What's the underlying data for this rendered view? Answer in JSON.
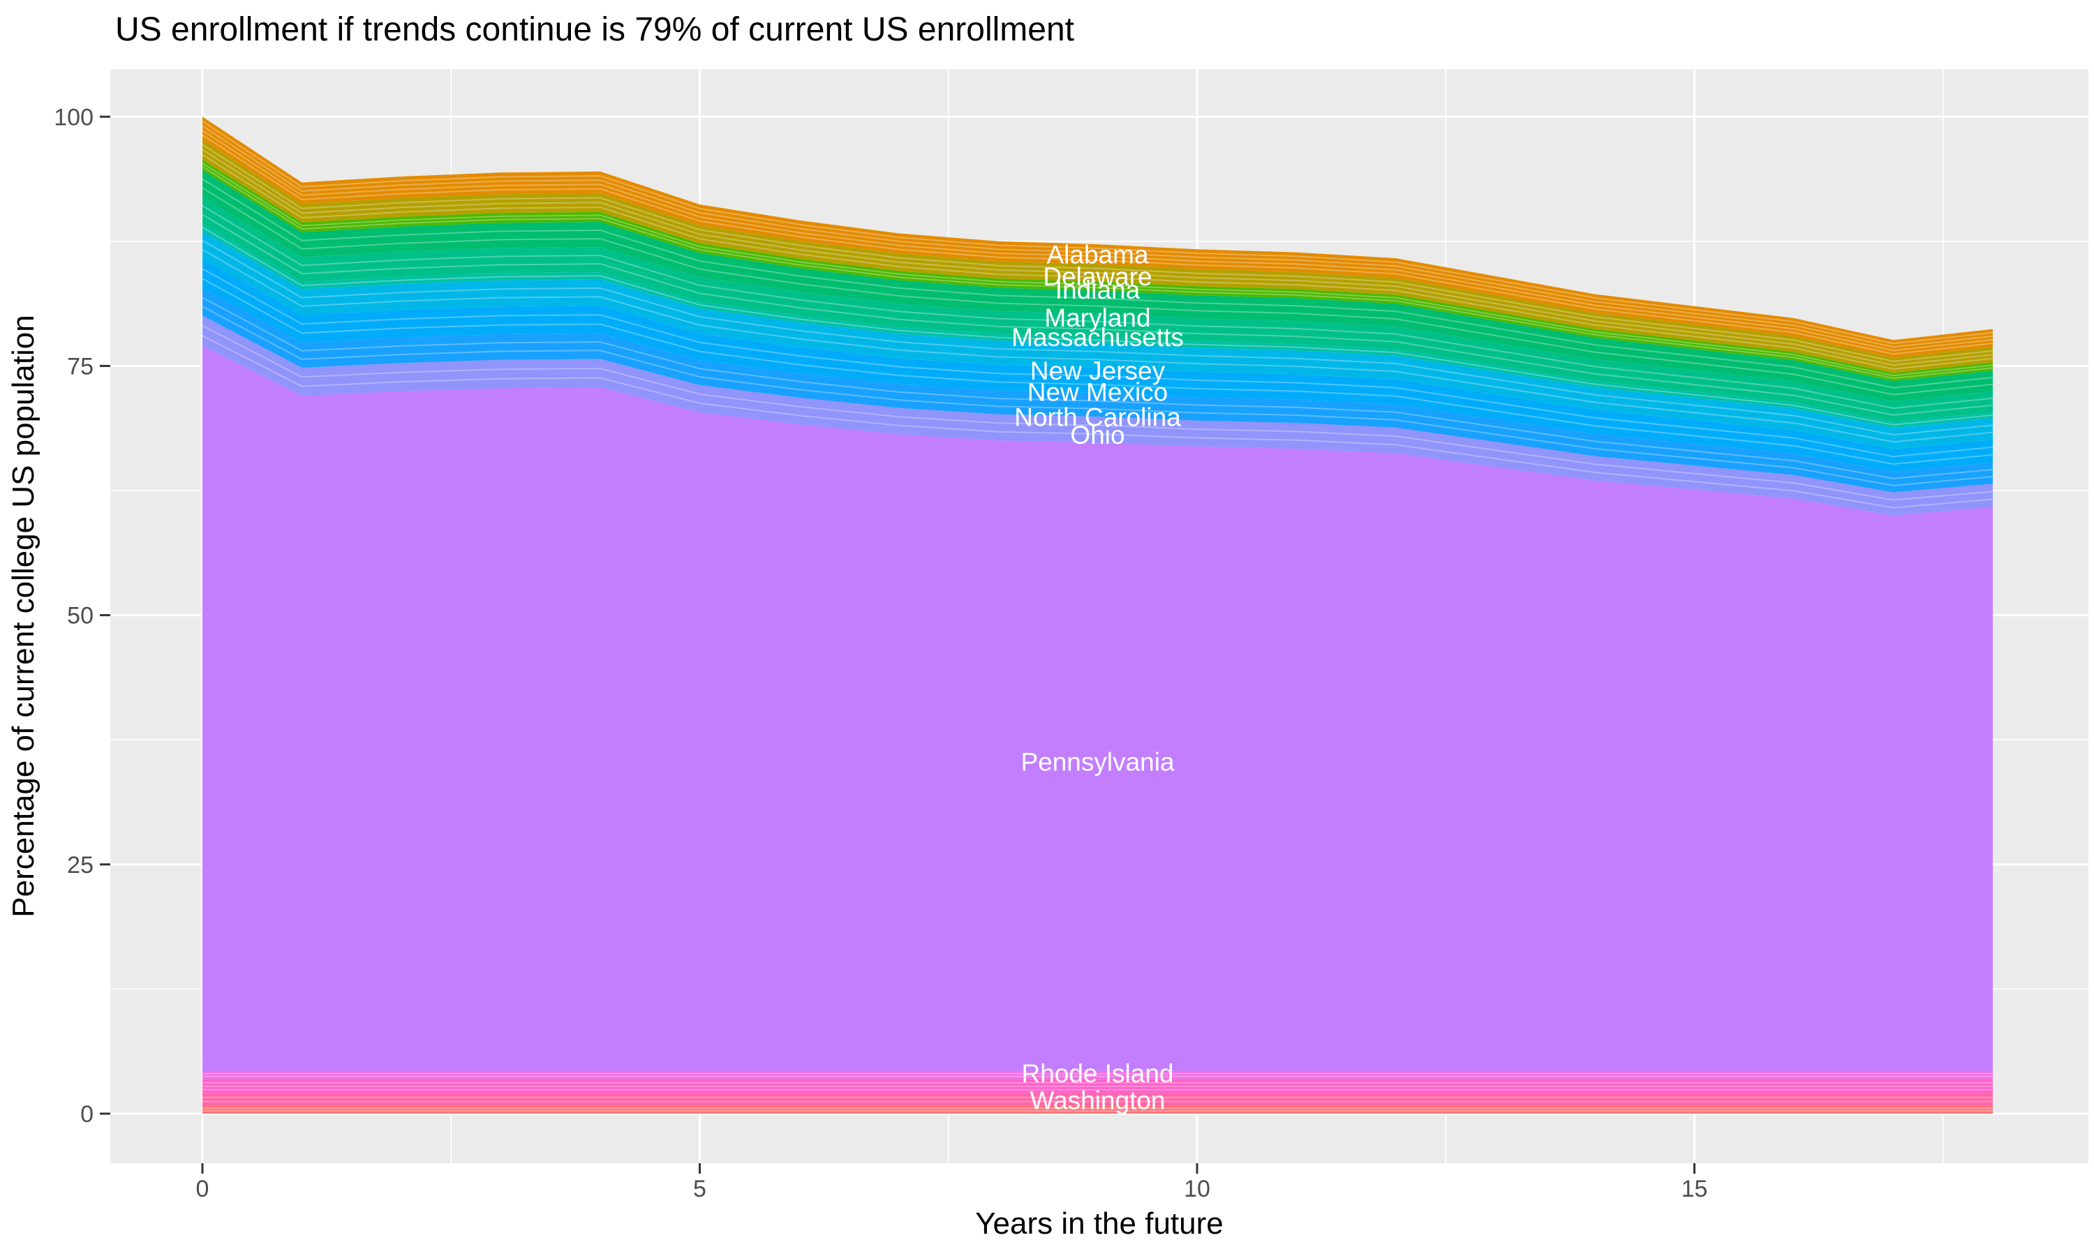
{
  "title": "US enrollment if trends continue is 79% of current US enrollment",
  "axes": {
    "x": {
      "label": "Years in the future",
      "ticks": [
        "0",
        "5",
        "10",
        "15"
      ],
      "tick_values": [
        0,
        5,
        10,
        15
      ],
      "minor_tick_values": [
        2.5,
        7.5,
        12.5,
        17.5
      ]
    },
    "y": {
      "label": "Percentage of current college US population",
      "ticks": [
        "0",
        "25",
        "50",
        "75",
        "100"
      ],
      "tick_values": [
        0,
        25,
        50,
        75,
        100
      ],
      "minor_tick_values": [
        12.5,
        37.5,
        62.5,
        87.5
      ]
    }
  },
  "colors": {
    "panel_background": "#EBEBEB",
    "gridline_major": "#FFFFFF",
    "gridline_minor": "#FFFFFF",
    "tick_mark": "#333333",
    "tick_label": "#4D4D4D",
    "axis_title": "#000000",
    "title": "#000000",
    "state_label_text": "#FFFFFF"
  },
  "chart_data": {
    "type": "area",
    "stacked": true,
    "title": "US enrollment if trends continue is 79% of current US enrollment",
    "xlabel": "Years in the future",
    "ylabel": "Percentage of current college US population",
    "xlim": [
      0,
      18
    ],
    "ylim": [
      0,
      100
    ],
    "grid": true,
    "legend": "none (states labeled inline in white at x = 9)",
    "x": [
      0,
      1,
      2,
      3,
      4,
      5,
      6,
      7,
      8,
      9,
      10,
      11,
      12,
      13,
      14,
      15,
      16,
      17,
      18
    ],
    "total_top_pct": [
      100,
      93.4,
      94.0,
      94.4,
      94.5,
      91.2,
      89.6,
      88.3,
      87.5,
      87.2,
      86.7,
      86.4,
      85.8,
      84.0,
      82.2,
      81.0,
      79.8,
      77.6,
      78.7
    ],
    "stack_base_pct": 4.3,
    "upper_bands": [
      {
        "name": "Pennsylvania",
        "color": "#C27EFF",
        "frac_from": 0.0,
        "frac_to": 0.76,
        "sub_strata": 0
      },
      {
        "name": "Ohio",
        "color": "#9094FB",
        "frac_from": 0.76,
        "frac_to": 0.7915,
        "sub_strata": 2
      },
      {
        "name": "North Carolina",
        "color": "#18A1FF",
        "frac_from": 0.7915,
        "frac_to": 0.82,
        "sub_strata": 2
      },
      {
        "name": "New Mexico",
        "color": "#00ACFA",
        "frac_from": 0.82,
        "frac_to": 0.851,
        "sub_strata": 2
      },
      {
        "name": "New Jersey",
        "color": "#00B7E8",
        "frac_from": 0.851,
        "frac_to": 0.88,
        "sub_strata": 2
      },
      {
        "name": "unlabeled states (teal)",
        "color": "#00C1A5",
        "frac_from": 0.88,
        "frac_to": 0.888,
        "sub_strata": 1
      },
      {
        "name": "Massachusetts",
        "color": "#00C089",
        "frac_from": 0.888,
        "frac_to": 0.916,
        "sub_strata": 2
      },
      {
        "name": "Maryland",
        "color": "#00BD70",
        "frac_from": 0.916,
        "frac_to": 0.944,
        "sub_strata": 2
      },
      {
        "name": "Indiana",
        "color": "#4CB800",
        "frac_from": 0.944,
        "frac_to": 0.955,
        "sub_strata": 2
      },
      {
        "name": "Delaware",
        "color": "#B4A000",
        "frac_from": 0.955,
        "frac_to": 0.976,
        "sub_strata": 3
      },
      {
        "name": "Alabama",
        "color": "#E38B00",
        "frac_from": 0.976,
        "frac_to": 1.0,
        "sub_strata": 4
      }
    ],
    "bottom_bands": [
      {
        "name": "unlabeled states (salmon)",
        "color": "#FA7378",
        "from_pct": 0.0,
        "to_pct": 0.8,
        "sub_strata": 2
      },
      {
        "name": "Washington",
        "color": "#FF66A6",
        "from_pct": 0.8,
        "to_pct": 2.05,
        "sub_strata": 2
      },
      {
        "name": "unlabeled states (pink)",
        "color": "#FF61C9",
        "from_pct": 2.05,
        "to_pct": 3.45,
        "sub_strata": 3
      },
      {
        "name": "Rhode Island",
        "color": "#EE6BE3",
        "from_pct": 3.45,
        "to_pct": 4.3,
        "sub_strata": 2
      }
    ],
    "state_labels": [
      {
        "text": "Alabama",
        "x": 9,
        "y_pct": 86.2
      },
      {
        "text": "Delaware",
        "x": 9,
        "y_pct": 84.0
      },
      {
        "text": "Indiana",
        "x": 9,
        "y_pct": 82.65
      },
      {
        "text": "Maryland",
        "x": 9,
        "y_pct": 79.85
      },
      {
        "text": "Massachusetts",
        "x": 9,
        "y_pct": 77.9
      },
      {
        "text": "New Jersey",
        "x": 9,
        "y_pct": 74.55
      },
      {
        "text": "New Mexico",
        "x": 9,
        "y_pct": 72.4
      },
      {
        "text": "North Carolina",
        "x": 9,
        "y_pct": 69.9
      },
      {
        "text": "Ohio",
        "x": 9,
        "y_pct": 68.1
      },
      {
        "text": "Pennsylvania",
        "x": 9,
        "y_pct": 35.3
      },
      {
        "text": "Rhode Island",
        "x": 9,
        "y_pct": 4.05
      },
      {
        "text": "Washington",
        "x": 9,
        "y_pct": 1.35
      }
    ]
  }
}
